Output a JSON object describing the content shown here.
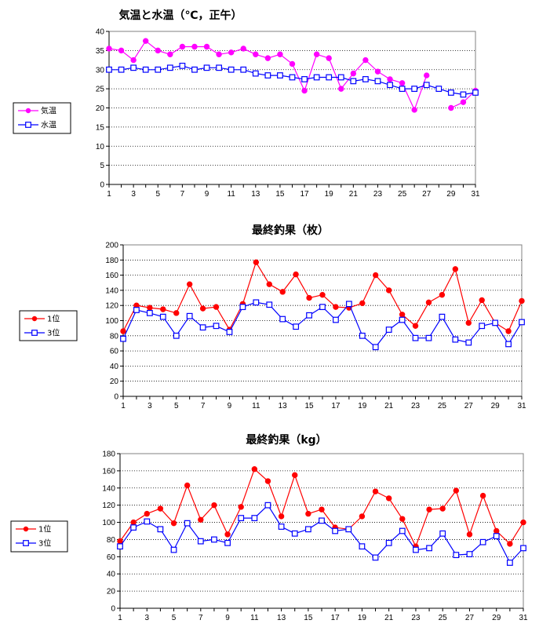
{
  "chart_data": [
    {
      "type": "line",
      "title": "気温と水温（℃，正午）",
      "ylim": [
        0,
        40
      ],
      "ystep": 5,
      "xticks": [
        "1",
        "3",
        "5",
        "7",
        "9",
        "11",
        "13",
        "15",
        "17",
        "19",
        "21",
        "23",
        "25",
        "27",
        "29",
        "31"
      ],
      "grid": true,
      "legend_position": "left",
      "x": [
        1,
        2,
        3,
        4,
        5,
        6,
        7,
        8,
        9,
        10,
        11,
        12,
        13,
        14,
        15,
        16,
        17,
        18,
        19,
        20,
        21,
        22,
        23,
        24,
        25,
        26,
        27,
        28,
        29,
        30,
        31
      ],
      "series": [
        {
          "name": "気温",
          "color": "#ff00ff",
          "marker": "filled-circle",
          "values": [
            35.5,
            35,
            32.5,
            37.5,
            35,
            34,
            36,
            36,
            36,
            34,
            34.5,
            35.5,
            34,
            33,
            34,
            31.5,
            24.5,
            34,
            33,
            25,
            29,
            32.5,
            29.5,
            27.5,
            26.5,
            19.5,
            28.5,
            null,
            20,
            21.5,
            24.5
          ]
        },
        {
          "name": "水温",
          "color": "#0000ff",
          "marker": "open-square",
          "values": [
            30,
            30,
            30.5,
            30,
            30,
            30.5,
            31,
            30,
            30.5,
            30.5,
            30,
            30,
            29,
            28.5,
            28.5,
            28,
            27.5,
            28,
            28,
            28,
            27,
            27.5,
            27,
            26,
            25,
            25,
            26,
            25,
            24,
            23.5,
            24
          ]
        }
      ]
    },
    {
      "type": "line",
      "title": "最終釣果（枚）",
      "ylim": [
        0,
        200
      ],
      "ystep": 20,
      "xticks": [
        "1",
        "3",
        "5",
        "7",
        "9",
        "11",
        "13",
        "15",
        "17",
        "19",
        "21",
        "23",
        "25",
        "27",
        "29",
        "31"
      ],
      "grid": true,
      "legend_position": "left",
      "x": [
        1,
        2,
        3,
        4,
        5,
        6,
        7,
        8,
        9,
        10,
        11,
        12,
        13,
        14,
        15,
        16,
        17,
        18,
        19,
        20,
        21,
        22,
        23,
        24,
        25,
        26,
        27,
        28,
        29,
        30,
        31
      ],
      "series": [
        {
          "name": "1位",
          "color": "#ff0000",
          "marker": "filled-circle",
          "values": [
            86,
            120,
            117,
            115,
            110,
            148,
            116,
            118,
            88,
            122,
            177,
            148,
            138,
            161,
            130,
            134,
            118,
            117,
            123,
            160,
            140,
            108,
            93,
            124,
            134,
            168,
            97,
            127,
            97,
            86,
            126
          ]
        },
        {
          "name": "3位",
          "color": "#0000ff",
          "marker": "open-square",
          "values": [
            76,
            114,
            110,
            105,
            80,
            106,
            91,
            93,
            85,
            118,
            124,
            121,
            102,
            92,
            107,
            118,
            101,
            122,
            80,
            65,
            88,
            101,
            77,
            77,
            105,
            75,
            71,
            93,
            97,
            69,
            98
          ]
        }
      ]
    },
    {
      "type": "line",
      "title": "最終釣果（kg）",
      "ylim": [
        0,
        180
      ],
      "ystep": 20,
      "xticks": [
        "1",
        "3",
        "5",
        "7",
        "9",
        "11",
        "13",
        "15",
        "17",
        "19",
        "21",
        "23",
        "25",
        "27",
        "29",
        "31"
      ],
      "grid": true,
      "legend_position": "left",
      "x": [
        1,
        2,
        3,
        4,
        5,
        6,
        7,
        8,
        9,
        10,
        11,
        12,
        13,
        14,
        15,
        16,
        17,
        18,
        19,
        20,
        21,
        22,
        23,
        24,
        25,
        26,
        27,
        28,
        29,
        30,
        31
      ],
      "series": [
        {
          "name": "1位",
          "color": "#ff0000",
          "marker": "filled-circle",
          "values": [
            78,
            100,
            110,
            116,
            99,
            143,
            103,
            120,
            86,
            118,
            162,
            148,
            107,
            155,
            110,
            115,
            94,
            92,
            107,
            136,
            128,
            104,
            72,
            115,
            116,
            137,
            86,
            131,
            90,
            75,
            100
          ]
        },
        {
          "name": "3位",
          "color": "#0000ff",
          "marker": "open-square",
          "values": [
            72,
            94,
            101,
            92,
            68,
            99,
            78,
            80,
            76,
            105,
            105,
            120,
            95,
            87,
            92,
            102,
            90,
            92,
            72,
            59,
            76,
            90,
            68,
            70,
            87,
            62,
            63,
            77,
            84,
            53,
            70
          ]
        }
      ]
    }
  ]
}
